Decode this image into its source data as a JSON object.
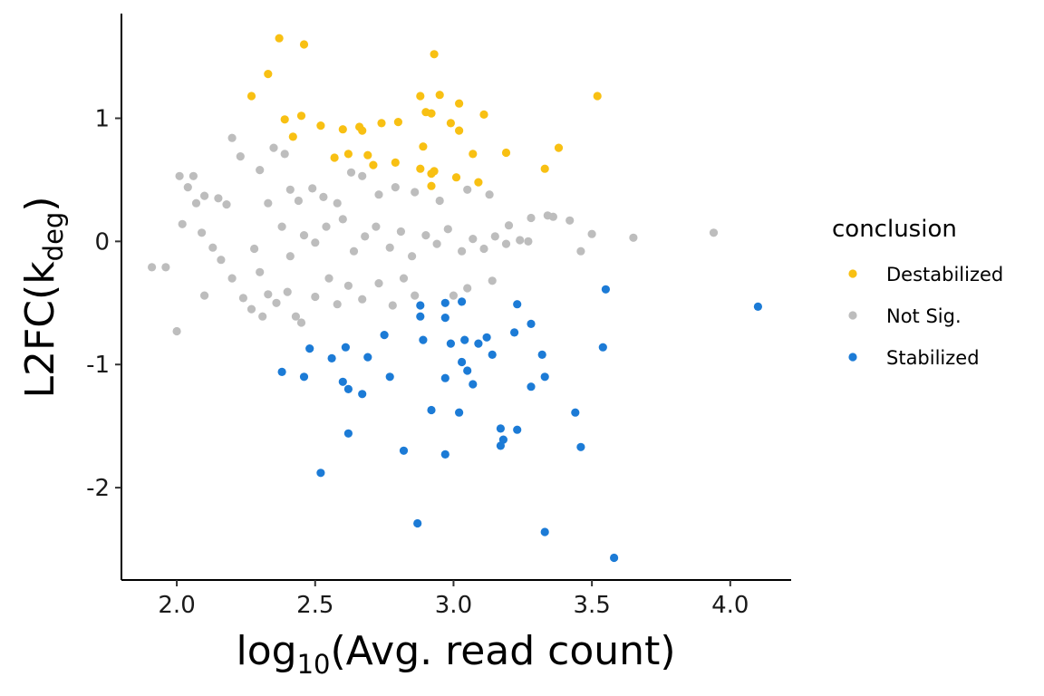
{
  "chart_data": {
    "type": "scatter",
    "title": "",
    "xlabel": {
      "base": "log",
      "sub": "10",
      "rest": "(Avg. read count)"
    },
    "ylabel": {
      "base": "L2FC(k",
      "sub": "deg",
      "rest": ")"
    },
    "xlim": [
      1.8,
      4.22
    ],
    "ylim": [
      -2.75,
      1.85
    ],
    "xticks": [
      2.0,
      2.5,
      3.0,
      3.5,
      4.0
    ],
    "xtick_labels": [
      "2.0",
      "2.5",
      "3.0",
      "3.5",
      "4.0"
    ],
    "yticks": [
      -2,
      -1,
      0,
      1
    ],
    "ytick_labels": [
      "-2",
      "-1",
      "0",
      "1"
    ],
    "grid": false,
    "legend": {
      "title": "conclusion",
      "placement": "right",
      "entries": [
        "Destabilized",
        "Not Sig.",
        "Stabilized"
      ]
    },
    "series": [
      {
        "name": "Destabilized",
        "color": "#f8c013",
        "points": [
          [
            2.37,
            1.65
          ],
          [
            2.46,
            1.6
          ],
          [
            2.93,
            1.52
          ],
          [
            2.33,
            1.36
          ],
          [
            2.27,
            1.18
          ],
          [
            2.88,
            1.18
          ],
          [
            2.95,
            1.19
          ],
          [
            3.02,
            1.12
          ],
          [
            3.52,
            1.18
          ],
          [
            2.39,
            0.99
          ],
          [
            2.45,
            1.02
          ],
          [
            2.9,
            1.05
          ],
          [
            2.92,
            1.04
          ],
          [
            3.11,
            1.03
          ],
          [
            2.52,
            0.94
          ],
          [
            2.6,
            0.91
          ],
          [
            2.66,
            0.93
          ],
          [
            2.67,
            0.9
          ],
          [
            2.74,
            0.96
          ],
          [
            2.8,
            0.97
          ],
          [
            2.99,
            0.96
          ],
          [
            3.02,
            0.9
          ],
          [
            2.42,
            0.85
          ],
          [
            2.89,
            0.77
          ],
          [
            3.38,
            0.76
          ],
          [
            2.57,
            0.68
          ],
          [
            2.62,
            0.71
          ],
          [
            2.69,
            0.7
          ],
          [
            2.71,
            0.62
          ],
          [
            2.79,
            0.64
          ],
          [
            3.07,
            0.71
          ],
          [
            3.19,
            0.72
          ],
          [
            2.88,
            0.59
          ],
          [
            2.92,
            0.55
          ],
          [
            2.93,
            0.57
          ],
          [
            3.01,
            0.52
          ],
          [
            3.33,
            0.59
          ],
          [
            2.92,
            0.45
          ],
          [
            3.09,
            0.48
          ]
        ]
      },
      {
        "name": "Not Sig.",
        "color": "#bdbdbd",
        "points": [
          [
            1.91,
            -0.21
          ],
          [
            1.96,
            -0.21
          ],
          [
            2.0,
            -0.73
          ],
          [
            2.01,
            0.53
          ],
          [
            2.06,
            0.53
          ],
          [
            2.2,
            0.84
          ],
          [
            2.23,
            0.69
          ],
          [
            2.35,
            0.76
          ],
          [
            2.39,
            0.71
          ],
          [
            2.04,
            0.44
          ],
          [
            2.07,
            0.31
          ],
          [
            2.02,
            0.14
          ],
          [
            2.1,
            0.37
          ],
          [
            2.15,
            0.35
          ],
          [
            2.18,
            0.3
          ],
          [
            2.09,
            0.07
          ],
          [
            2.13,
            -0.05
          ],
          [
            2.16,
            -0.15
          ],
          [
            2.2,
            -0.3
          ],
          [
            2.24,
            -0.46
          ],
          [
            2.1,
            -0.44
          ],
          [
            2.3,
            0.58
          ],
          [
            2.33,
            0.31
          ],
          [
            2.41,
            0.42
          ],
          [
            2.44,
            0.33
          ],
          [
            2.49,
            0.43
          ],
          [
            2.53,
            0.36
          ],
          [
            2.58,
            0.31
          ],
          [
            2.63,
            0.56
          ],
          [
            2.67,
            0.53
          ],
          [
            2.73,
            0.38
          ],
          [
            2.79,
            0.44
          ],
          [
            2.86,
            0.4
          ],
          [
            2.95,
            0.33
          ],
          [
            3.05,
            0.42
          ],
          [
            3.13,
            0.38
          ],
          [
            3.2,
            0.13
          ],
          [
            3.28,
            0.19
          ],
          [
            3.34,
            0.21
          ],
          [
            3.36,
            0.2
          ],
          [
            3.42,
            0.17
          ],
          [
            3.5,
            0.06
          ],
          [
            3.46,
            -0.08
          ],
          [
            3.65,
            0.03
          ],
          [
            3.94,
            0.07
          ],
          [
            2.28,
            -0.06
          ],
          [
            2.3,
            -0.25
          ],
          [
            2.33,
            -0.43
          ],
          [
            2.27,
            -0.55
          ],
          [
            2.31,
            -0.61
          ],
          [
            2.36,
            -0.5
          ],
          [
            2.4,
            -0.41
          ],
          [
            2.43,
            -0.61
          ],
          [
            2.45,
            -0.66
          ],
          [
            2.5,
            -0.45
          ],
          [
            2.55,
            -0.3
          ],
          [
            2.58,
            -0.51
          ],
          [
            2.62,
            -0.36
          ],
          [
            2.67,
            -0.47
          ],
          [
            2.73,
            -0.34
          ],
          [
            2.78,
            -0.52
          ],
          [
            2.82,
            -0.3
          ],
          [
            2.86,
            -0.44
          ],
          [
            3.0,
            -0.44
          ],
          [
            3.05,
            -0.38
          ],
          [
            3.14,
            -0.32
          ],
          [
            2.38,
            0.12
          ],
          [
            2.41,
            -0.12
          ],
          [
            2.46,
            0.05
          ],
          [
            2.5,
            -0.01
          ],
          [
            2.54,
            0.12
          ],
          [
            2.6,
            0.18
          ],
          [
            2.64,
            -0.08
          ],
          [
            2.68,
            0.04
          ],
          [
            2.72,
            0.12
          ],
          [
            2.77,
            -0.05
          ],
          [
            2.81,
            0.08
          ],
          [
            2.85,
            -0.12
          ],
          [
            2.9,
            0.05
          ],
          [
            2.94,
            -0.02
          ],
          [
            2.98,
            0.1
          ],
          [
            3.03,
            -0.08
          ],
          [
            3.07,
            0.02
          ],
          [
            3.11,
            -0.06
          ],
          [
            3.15,
            0.04
          ],
          [
            3.19,
            -0.02
          ],
          [
            3.24,
            0.01
          ],
          [
            3.27,
            0.0
          ]
        ]
      },
      {
        "name": "Stabilized",
        "color": "#1c7bd6",
        "points": [
          [
            3.55,
            -0.39
          ],
          [
            4.1,
            -0.53
          ],
          [
            2.88,
            -0.52
          ],
          [
            2.97,
            -0.5
          ],
          [
            3.03,
            -0.49
          ],
          [
            3.23,
            -0.51
          ],
          [
            2.88,
            -0.61
          ],
          [
            2.97,
            -0.62
          ],
          [
            3.28,
            -0.67
          ],
          [
            2.75,
            -0.76
          ],
          [
            3.22,
            -0.74
          ],
          [
            3.54,
            -0.86
          ],
          [
            2.48,
            -0.87
          ],
          [
            2.61,
            -0.86
          ],
          [
            2.89,
            -0.8
          ],
          [
            2.99,
            -0.83
          ],
          [
            3.04,
            -0.8
          ],
          [
            3.09,
            -0.83
          ],
          [
            3.12,
            -0.78
          ],
          [
            2.56,
            -0.95
          ],
          [
            2.69,
            -0.94
          ],
          [
            3.03,
            -0.98
          ],
          [
            3.14,
            -0.92
          ],
          [
            3.32,
            -0.92
          ],
          [
            2.38,
            -1.06
          ],
          [
            2.46,
            -1.1
          ],
          [
            2.6,
            -1.14
          ],
          [
            2.62,
            -1.2
          ],
          [
            2.67,
            -1.24
          ],
          [
            2.77,
            -1.1
          ],
          [
            2.97,
            -1.11
          ],
          [
            3.05,
            -1.05
          ],
          [
            3.07,
            -1.16
          ],
          [
            3.28,
            -1.18
          ],
          [
            3.33,
            -1.1
          ],
          [
            2.92,
            -1.37
          ],
          [
            3.02,
            -1.39
          ],
          [
            3.44,
            -1.39
          ],
          [
            3.17,
            -1.52
          ],
          [
            3.23,
            -1.53
          ],
          [
            2.62,
            -1.56
          ],
          [
            3.18,
            -1.61
          ],
          [
            3.17,
            -1.66
          ],
          [
            3.46,
            -1.67
          ],
          [
            2.82,
            -1.7
          ],
          [
            2.97,
            -1.73
          ],
          [
            2.52,
            -1.88
          ],
          [
            2.87,
            -2.29
          ],
          [
            3.33,
            -2.36
          ],
          [
            3.58,
            -2.57
          ]
        ]
      }
    ]
  }
}
